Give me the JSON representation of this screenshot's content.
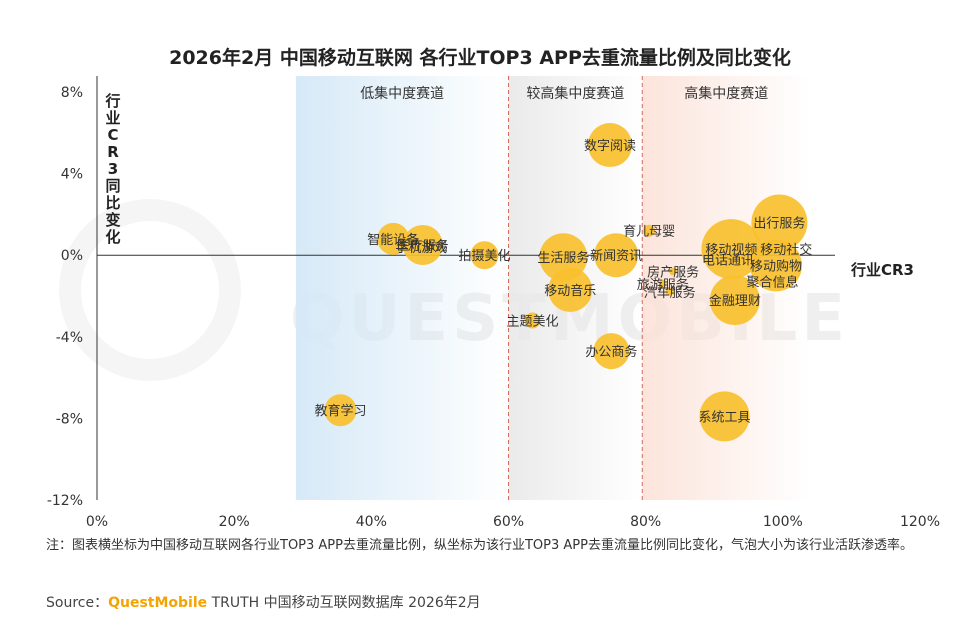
{
  "chart_data": {
    "type": "scatter",
    "title": "2026年2月 中国移动互联网 各行业TOP3 APP去重流量比例及同比变化",
    "xlabel": "行业CR3",
    "ylabel": "行业CR3同比变化",
    "xlim": [
      0,
      120
    ],
    "ylim": [
      -12,
      8
    ],
    "x_ticks": [
      "0%",
      "20%",
      "40%",
      "60%",
      "80%",
      "100%",
      "120%"
    ],
    "y_ticks": [
      "8%",
      "4%",
      "0%",
      "-4%",
      "-8%",
      "-12%"
    ],
    "zones": [
      {
        "label": "低集中度赛道",
        "x_range": [
          29,
          60
        ],
        "color": "#d6e9f7"
      },
      {
        "label": "较高集中度赛道",
        "x_range": [
          60,
          79.5
        ],
        "color": "#e8e8e8"
      },
      {
        "label": "高集中度赛道",
        "x_range": [
          79.5,
          104
        ],
        "color": "#fbe1d7"
      }
    ],
    "bubble_color": "#f9c02e",
    "points": [
      {
        "name": "数字阅读",
        "x": 74.8,
        "y": 5.4,
        "size": 22
      },
      {
        "name": "智能设备",
        "x": 43.2,
        "y": 0.8,
        "size": 16
      },
      {
        "name": "医疗服务",
        "x": 47.5,
        "y": 0.5,
        "size": 20
      },
      {
        "name": "手机游戏",
        "x": 47.3,
        "y": 0.4,
        "size": 4
      },
      {
        "name": "拍摄美化",
        "x": 56.5,
        "y": 0.0,
        "size": 14
      },
      {
        "name": "生活服务",
        "x": 68.0,
        "y": -0.1,
        "size": 24
      },
      {
        "name": "新闻资讯",
        "x": 75.7,
        "y": 0.0,
        "size": 22
      },
      {
        "name": "育儿母婴",
        "x": 80.5,
        "y": 1.2,
        "size": 6
      },
      {
        "name": "移动视频",
        "x": 92.5,
        "y": 0.3,
        "size": 30
      },
      {
        "name": "出行服务",
        "x": 99.5,
        "y": 1.6,
        "size": 28
      },
      {
        "name": "移动社交",
        "x": 100.5,
        "y": 0.3,
        "size": 4
      },
      {
        "name": "电话通讯",
        "x": 92.0,
        "y": -0.2,
        "size": 4
      },
      {
        "name": "移动购物",
        "x": 99.0,
        "y": -0.5,
        "size": 26
      },
      {
        "name": "聚合信息",
        "x": 98.5,
        "y": -1.3,
        "size": 4
      },
      {
        "name": "房产服务",
        "x": 84.0,
        "y": -0.8,
        "size": 4
      },
      {
        "name": "旅游服务",
        "x": 82.5,
        "y": -1.4,
        "size": 4
      },
      {
        "name": "汽车服务",
        "x": 83.5,
        "y": -1.8,
        "size": 4
      },
      {
        "name": "移动音乐",
        "x": 69.0,
        "y": -1.7,
        "size": 22
      },
      {
        "name": "金融理财",
        "x": 93.0,
        "y": -2.2,
        "size": 25
      },
      {
        "name": "主题美化",
        "x": 63.5,
        "y": -3.2,
        "size": 8
      },
      {
        "name": "办公商务",
        "x": 75.0,
        "y": -4.7,
        "size": 18
      },
      {
        "name": "教育学习",
        "x": 35.5,
        "y": -7.6,
        "size": 16
      },
      {
        "name": "系统工具",
        "x": 91.5,
        "y": -7.9,
        "size": 25
      }
    ]
  },
  "watermark": "QUESTMOBILE",
  "note": "注：图表横坐标为中国移动互联网各行业TOP3 APP去重流量比例，纵坐标为该行业TOP3 APP去重流量比例同比变化，气泡大小为该行业活跃渗透率。",
  "source": {
    "prefix": "Source：",
    "brand": "QuestMobile",
    "rest": " TRUTH 中国移动互联网数据库 2026年2月"
  }
}
